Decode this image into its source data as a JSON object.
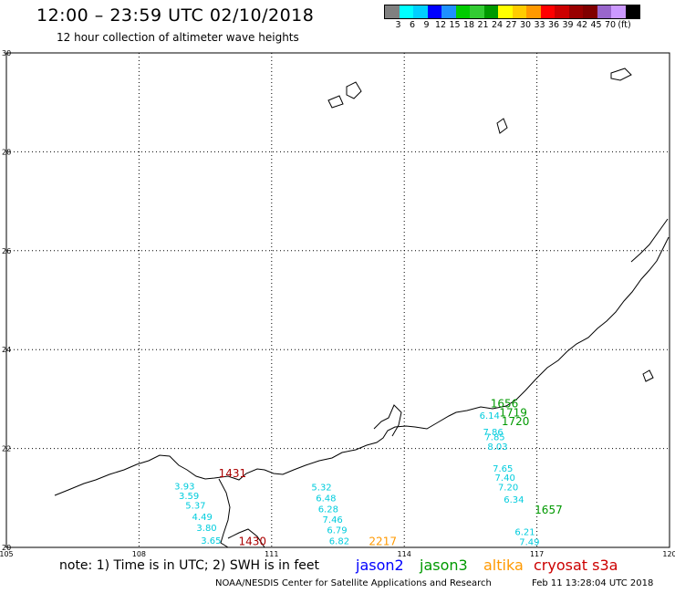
{
  "header": {
    "title": "12:00 – 23:59 UTC 02/10/2018",
    "subtitle": "12 hour collection of altimeter wave heights"
  },
  "colorbar": {
    "unit": "(ft)",
    "colors": [
      "#808080",
      "#00ffff",
      "#00d0ff",
      "#0000ff",
      "#1e90ff",
      "#00cc00",
      "#33cc33",
      "#009900",
      "#ffff00",
      "#ffcc00",
      "#ff9900",
      "#ff0000",
      "#cc0000",
      "#990000",
      "#800000",
      "#9966cc",
      "#cc99ff",
      "#000000"
    ],
    "labels": [
      "3",
      "6",
      "9",
      "12",
      "15",
      "18",
      "21",
      "24",
      "27",
      "30",
      "33",
      "36",
      "39",
      "42",
      "45",
      "70"
    ]
  },
  "map": {
    "x_ticks": [
      "105",
      "108",
      "111",
      "114",
      "117",
      "120"
    ],
    "y_ticks": [
      "30",
      "28",
      "26",
      "24",
      "22",
      "20"
    ],
    "lon_range": [
      105,
      120
    ],
    "lat_range": [
      20,
      30
    ]
  },
  "observations": {
    "cyan": [
      {
        "t": "3.93",
        "lon": 108.8,
        "lat": 21.17
      },
      {
        "t": "3.59",
        "lon": 108.9,
        "lat": 20.98
      },
      {
        "t": "5.37",
        "lon": 109.05,
        "lat": 20.78
      },
      {
        "t": "4.49",
        "lon": 109.2,
        "lat": 20.55
      },
      {
        "t": "3.80",
        "lon": 109.3,
        "lat": 20.33
      },
      {
        "t": "3.65",
        "lon": 109.4,
        "lat": 20.07
      },
      {
        "t": "5.32",
        "lon": 111.9,
        "lat": 21.15
      },
      {
        "t": "6.48",
        "lon": 112.0,
        "lat": 20.93
      },
      {
        "t": "6.28",
        "lon": 112.05,
        "lat": 20.71
      },
      {
        "t": "7.46",
        "lon": 112.15,
        "lat": 20.5
      },
      {
        "t": "6.79",
        "lon": 112.25,
        "lat": 20.29
      },
      {
        "t": "6.82",
        "lon": 112.3,
        "lat": 20.06
      },
      {
        "t": "6.14",
        "lon": 115.7,
        "lat": 22.6
      },
      {
        "t": "7.86",
        "lon": 115.78,
        "lat": 22.27
      },
      {
        "t": "7.85",
        "lon": 115.82,
        "lat": 22.17
      },
      {
        "t": "8.03",
        "lon": 115.88,
        "lat": 21.97
      },
      {
        "t": "7.65",
        "lon": 116.0,
        "lat": 21.53
      },
      {
        "t": "7.40",
        "lon": 116.05,
        "lat": 21.35
      },
      {
        "t": "7.20",
        "lon": 116.12,
        "lat": 21.15
      },
      {
        "t": "6.34",
        "lon": 116.25,
        "lat": 20.9
      },
      {
        "t": "6.21",
        "lon": 116.5,
        "lat": 20.25
      },
      {
        "t": "7.49",
        "lon": 116.6,
        "lat": 20.05
      }
    ],
    "green": [
      {
        "t": "1656",
        "lon": 115.95,
        "lat": 22.83
      },
      {
        "t": "1719",
        "lon": 116.15,
        "lat": 22.65
      },
      {
        "t": "1720",
        "lon": 116.2,
        "lat": 22.47
      },
      {
        "t": "1657",
        "lon": 116.95,
        "lat": 20.68
      }
    ],
    "red": [
      {
        "t": "1431",
        "lon": 109.8,
        "lat": 21.42
      },
      {
        "t": "1430",
        "lon": 110.25,
        "lat": 20.05
      }
    ],
    "orange": [
      {
        "t": "2217",
        "lon": 113.2,
        "lat": 20.05
      }
    ]
  },
  "note": {
    "text": "note: 1) Time is in UTC; 2) SWH is in feet"
  },
  "legend": {
    "items": [
      {
        "label": "jason2",
        "color": "#0000ff"
      },
      {
        "label": "jason3",
        "color": "#009900"
      },
      {
        "label": "altika",
        "color": "#ff9900"
      },
      {
        "label": "cryosat s3a",
        "color": "#cc0000"
      }
    ]
  },
  "footer": {
    "credit": "NOAA/NESDIS Center for Satellite Applications and Research",
    "timestamp": "Feb 11 13:28:04 UTC 2018"
  }
}
